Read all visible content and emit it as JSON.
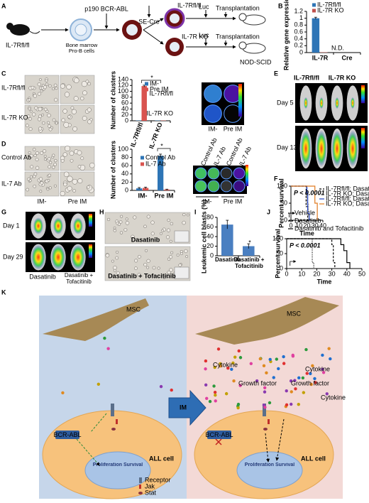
{
  "panel_labels": [
    "A",
    "B",
    "C",
    "D",
    "E",
    "F",
    "G",
    "H",
    "I",
    "J",
    "K"
  ],
  "a": {
    "mouse": "IL-7Rfl/fl",
    "source": "Bone marrow Pro-B cells",
    "transduce": "p190 BCR-ABL",
    "cre": "SE-Cre",
    "out_flox": "IL-7Rfl/fl",
    "out_ko": "IL-7R KO",
    "luc": [
      "Luc",
      "Luc"
    ],
    "transplant": [
      "Transplantation",
      "Transplantation"
    ],
    "host": "NOD-SCID"
  },
  "c": {
    "rows": [
      "IL-7Rfl/fl",
      "IL-7R KO"
    ],
    "wells_rows": [
      "IL-7Rfl/fl",
      "IL-7R KO"
    ],
    "wells_cols": [
      "IM-",
      "Pre IM"
    ]
  },
  "d": {
    "rows": [
      "Control Ab",
      "IL-7 Ab"
    ],
    "cols": [
      "IM-",
      "Pre IM"
    ],
    "wells_cols": [
      "Control Ab",
      "IL-7 Ab",
      "Control Ab",
      "IL-7 Ab"
    ],
    "wells_groups": [
      "IM-",
      "Pre IM"
    ]
  },
  "e": {
    "cols": [
      "IL-7Rfl/fl",
      "IL-7R KO"
    ],
    "rows": [
      "Day 5",
      "Day 13"
    ]
  },
  "g": {
    "rows": [
      "Day 1",
      "Day 29"
    ],
    "cols": [
      "Dasatinib",
      "Dasatinib + Tofacitinib"
    ]
  },
  "h": {
    "captions": [
      "Dasatinib",
      "Dasatinib + Tofacitinib"
    ]
  },
  "k": {
    "msc": [
      "MSC",
      "MSC"
    ],
    "cell": [
      "ALL cell",
      "ALL cell"
    ],
    "kinase": [
      "BCR-ABL",
      "BCR-ABL"
    ],
    "outcome": [
      "Proliferation Survival",
      "Proliferation Survival"
    ],
    "im": "IM",
    "legend": [
      "Receptor",
      "Jak",
      "Stat"
    ],
    "cytokine": [
      "Cytokine",
      "Cytokine",
      "Cytokine"
    ],
    "growth": [
      "Growth factor",
      "Growth factor"
    ]
  },
  "chart_data": [
    {
      "type": "bar",
      "ylabel": "Relative gene expression",
      "categories": [
        "IL-7R",
        "Cre"
      ],
      "series": [
        {
          "name": "IL-7Rfl/fl",
          "color": "#2e75b6",
          "values": [
            1,
            null
          ],
          "errors": [
            0.03,
            null
          ]
        },
        {
          "name": "IL-7R KO",
          "color": "#c0504d",
          "values": [
            0.01,
            null
          ]
        }
      ],
      "ylim": [
        0,
        1.2
      ],
      "yticks": [
        0,
        0.2,
        0.4,
        0.6,
        0.8,
        1,
        1.2
      ],
      "annotation": "N.D."
    },
    {
      "type": "bar",
      "ylabel": "Number of clusters",
      "categories": [
        "IL-7Rfl/fl",
        "IL-7R KO"
      ],
      "series": [
        {
          "name": "IM-",
          "color": "#2e75b6",
          "values": [
            1,
            1
          ]
        },
        {
          "name": "Pre IM",
          "color": "#d9534f",
          "values": [
            118,
            1
          ],
          "errors": [
            3,
            null
          ]
        }
      ],
      "ylim": [
        0,
        140
      ],
      "yticks": [
        0,
        20,
        40,
        60,
        80,
        100,
        120,
        140
      ],
      "annotation": "*"
    },
    {
      "type": "bar",
      "ylabel": "Number of clusters",
      "categories": [
        "IM-",
        "Pre IM"
      ],
      "series": [
        {
          "name": "Control Ab",
          "color": "#2e75b6",
          "values": [
            5,
            84
          ],
          "errors": [
            2,
            4
          ]
        },
        {
          "name": "IL-7 Ab",
          "color": "#d9534f",
          "values": [
            6,
            2
          ],
          "errors": [
            2,
            1
          ]
        }
      ],
      "ylim": [
        0,
        100
      ],
      "yticks": [
        0,
        20,
        40,
        60,
        80,
        100
      ],
      "annotation": "*"
    },
    {
      "type": "line",
      "ylabel": "Percent survival",
      "xlabel": "Time",
      "xlim": [
        0,
        40
      ],
      "ylim": [
        0,
        100
      ],
      "xticks": [
        0,
        10,
        20,
        30,
        40
      ],
      "yticks": [
        0,
        50,
        100
      ],
      "annotation": "P < 0.0001",
      "series": [
        {
          "name": "IL-7Rfl/fl; Dasatinib-",
          "color": "#000000",
          "dash": "3 2",
          "x": [
            0,
            19,
            19,
            21,
            21
          ],
          "values": [
            100,
            100,
            40,
            40,
            0
          ]
        },
        {
          "name": "IL-7R KO; Dasatinib-",
          "color": "#777777",
          "dash": "1 1.5",
          "x": [
            0,
            20,
            20,
            22,
            22
          ],
          "values": [
            100,
            100,
            50,
            50,
            0
          ]
        },
        {
          "name": "IL-7Rfl/fl; Dasatinib+",
          "color": "#1f3fbf",
          "x": [
            0,
            20,
            20,
            21,
            21,
            23,
            23
          ],
          "values": [
            100,
            100,
            80,
            80,
            20,
            20,
            0
          ]
        },
        {
          "name": "IL-7R KO; Dasatinib+",
          "color": "#e07b20",
          "x": [
            0,
            30,
            30,
            33,
            33
          ],
          "values": [
            100,
            100,
            50,
            50,
            0
          ]
        }
      ]
    },
    {
      "type": "bar",
      "ylabel": "Leukemic cell blasts (%)",
      "categories": [
        "Dasatinib",
        "Dasatinib + Tofacitinib"
      ],
      "values": [
        65,
        20
      ],
      "errors": [
        9,
        5
      ],
      "color": "#4a7fc1",
      "ylim": [
        0,
        80
      ],
      "yticks": [
        0,
        20,
        40,
        60,
        80
      ],
      "annotation": "*"
    },
    {
      "type": "line",
      "ylabel": "Percent survival",
      "xlabel": "Time",
      "xlim": [
        0,
        50
      ],
      "ylim": [
        0,
        100
      ],
      "xticks": [
        0,
        10,
        20,
        30,
        40,
        50
      ],
      "yticks": [
        0,
        50,
        100
      ],
      "annotation": "P < 0.0001",
      "series": [
        {
          "name": "Vehicle",
          "color": "#000000",
          "dash": "1 1.5",
          "x": [
            0,
            17,
            17,
            18,
            18
          ],
          "values": [
            100,
            100,
            20,
            20,
            0
          ]
        },
        {
          "name": "Dasatinib",
          "color": "#000000",
          "dash": "3 2",
          "x": [
            0,
            30,
            30,
            31,
            31,
            32,
            32
          ],
          "values": [
            100,
            100,
            80,
            80,
            20,
            20,
            0
          ]
        },
        {
          "name": "Dasatinib and Tofacitinib",
          "color": "#000000",
          "x": [
            0,
            36,
            36,
            38,
            38,
            40,
            40,
            42,
            42
          ],
          "values": [
            100,
            100,
            80,
            80,
            60,
            60,
            20,
            20,
            0
          ]
        }
      ]
    }
  ]
}
